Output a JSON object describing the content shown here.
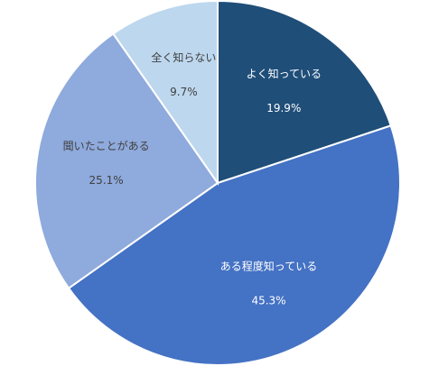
{
  "chart_data": {
    "type": "pie",
    "categories": [
      "よく知っている",
      "ある程度知っている",
      "聞いたことがある",
      "全く知らない"
    ],
    "values": [
      19.9,
      45.3,
      25.1,
      9.7
    ],
    "value_labels": [
      "19.9%",
      "45.3%",
      "25.1%",
      "9.7%"
    ],
    "colors": [
      "#1f4e79",
      "#4472c4",
      "#8faadc",
      "#bdd7ee"
    ]
  }
}
